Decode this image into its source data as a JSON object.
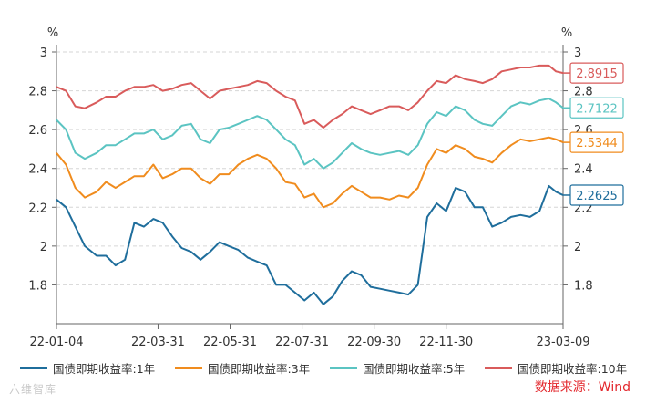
{
  "chart_data": {
    "type": "line",
    "y_unit_left": "%",
    "y_unit_right": "%",
    "ylim": [
      1.6,
      3.0
    ],
    "y_ticks": [
      "3",
      "2.8",
      "2.6",
      "2.4",
      "2.2",
      "2",
      "1.8"
    ],
    "y_tick_values": [
      3.0,
      2.8,
      2.6,
      2.4,
      2.2,
      2.0,
      1.8
    ],
    "x_ticks": [
      "22-01-04",
      "22-03-31",
      "22-05-31",
      "22-07-31",
      "22-09-30",
      "22-11-30",
      "23-03-09"
    ],
    "x_tick_dates": [
      "2022-01-04",
      "2022-03-31",
      "2022-05-31",
      "2022-07-31",
      "2022-09-30",
      "2022-11-30",
      "2023-03-09"
    ],
    "x_range": [
      "2022-01-04",
      "2023-03-09"
    ],
    "grid": "horizontal dashed",
    "legend_position": "bottom",
    "series": [
      {
        "name": "国债即期收益率:1年",
        "color": "#1f6e9c",
        "last_label": "2.2625",
        "points": [
          [
            "2022-01-04",
            2.24
          ],
          [
            "2022-01-12",
            2.2
          ],
          [
            "2022-01-20",
            2.1
          ],
          [
            "2022-01-28",
            2.0
          ],
          [
            "2022-02-07",
            1.95
          ],
          [
            "2022-02-15",
            1.95
          ],
          [
            "2022-02-23",
            1.9
          ],
          [
            "2022-03-03",
            1.93
          ],
          [
            "2022-03-11",
            2.12
          ],
          [
            "2022-03-19",
            2.1
          ],
          [
            "2022-03-27",
            2.14
          ],
          [
            "2022-04-04",
            2.12
          ],
          [
            "2022-04-12",
            2.05
          ],
          [
            "2022-04-20",
            1.99
          ],
          [
            "2022-04-28",
            1.97
          ],
          [
            "2022-05-06",
            1.93
          ],
          [
            "2022-05-14",
            1.97
          ],
          [
            "2022-05-22",
            2.02
          ],
          [
            "2022-05-30",
            2.0
          ],
          [
            "2022-06-07",
            1.98
          ],
          [
            "2022-06-15",
            1.94
          ],
          [
            "2022-06-23",
            1.92
          ],
          [
            "2022-07-01",
            1.9
          ],
          [
            "2022-07-09",
            1.8
          ],
          [
            "2022-07-17",
            1.8
          ],
          [
            "2022-07-25",
            1.76
          ],
          [
            "2022-08-02",
            1.72
          ],
          [
            "2022-08-10",
            1.76
          ],
          [
            "2022-08-18",
            1.7
          ],
          [
            "2022-08-26",
            1.74
          ],
          [
            "2022-09-03",
            1.82
          ],
          [
            "2022-09-11",
            1.87
          ],
          [
            "2022-09-19",
            1.85
          ],
          [
            "2022-09-27",
            1.79
          ],
          [
            "2022-10-05",
            1.78
          ],
          [
            "2022-10-13",
            1.77
          ],
          [
            "2022-10-21",
            1.76
          ],
          [
            "2022-10-29",
            1.75
          ],
          [
            "2022-11-06",
            1.8
          ],
          [
            "2022-11-14",
            2.15
          ],
          [
            "2022-11-22",
            2.22
          ],
          [
            "2022-11-30",
            2.18
          ],
          [
            "2022-12-08",
            2.3
          ],
          [
            "2022-12-16",
            2.28
          ],
          [
            "2022-12-24",
            2.2
          ],
          [
            "2022-12-31",
            2.2
          ],
          [
            "2023-01-08",
            2.1
          ],
          [
            "2023-01-16",
            2.12
          ],
          [
            "2023-01-24",
            2.15
          ],
          [
            "2023-02-01",
            2.16
          ],
          [
            "2023-02-09",
            2.15
          ],
          [
            "2023-02-17",
            2.18
          ],
          [
            "2023-02-25",
            2.31
          ],
          [
            "2023-03-03",
            2.28
          ],
          [
            "2023-03-09",
            2.2625
          ]
        ]
      },
      {
        "name": "国债即期收益率:3年",
        "color": "#f08c1e",
        "last_label": "2.5344",
        "points": [
          [
            "2022-01-04",
            2.48
          ],
          [
            "2022-01-12",
            2.42
          ],
          [
            "2022-01-20",
            2.3
          ],
          [
            "2022-01-28",
            2.25
          ],
          [
            "2022-02-07",
            2.28
          ],
          [
            "2022-02-15",
            2.33
          ],
          [
            "2022-02-23",
            2.3
          ],
          [
            "2022-03-03",
            2.33
          ],
          [
            "2022-03-11",
            2.36
          ],
          [
            "2022-03-19",
            2.36
          ],
          [
            "2022-03-27",
            2.42
          ],
          [
            "2022-04-04",
            2.35
          ],
          [
            "2022-04-12",
            2.37
          ],
          [
            "2022-04-20",
            2.4
          ],
          [
            "2022-04-28",
            2.4
          ],
          [
            "2022-05-06",
            2.35
          ],
          [
            "2022-05-14",
            2.32
          ],
          [
            "2022-05-22",
            2.37
          ],
          [
            "2022-05-30",
            2.37
          ],
          [
            "2022-06-07",
            2.42
          ],
          [
            "2022-06-15",
            2.45
          ],
          [
            "2022-06-23",
            2.47
          ],
          [
            "2022-07-01",
            2.45
          ],
          [
            "2022-07-09",
            2.4
          ],
          [
            "2022-07-17",
            2.33
          ],
          [
            "2022-07-25",
            2.32
          ],
          [
            "2022-08-02",
            2.25
          ],
          [
            "2022-08-10",
            2.27
          ],
          [
            "2022-08-18",
            2.2
          ],
          [
            "2022-08-26",
            2.22
          ],
          [
            "2022-09-03",
            2.27
          ],
          [
            "2022-09-11",
            2.31
          ],
          [
            "2022-09-19",
            2.28
          ],
          [
            "2022-09-27",
            2.25
          ],
          [
            "2022-10-05",
            2.25
          ],
          [
            "2022-10-13",
            2.24
          ],
          [
            "2022-10-21",
            2.26
          ],
          [
            "2022-10-29",
            2.25
          ],
          [
            "2022-11-06",
            2.3
          ],
          [
            "2022-11-14",
            2.42
          ],
          [
            "2022-11-22",
            2.5
          ],
          [
            "2022-11-30",
            2.48
          ],
          [
            "2022-12-08",
            2.52
          ],
          [
            "2022-12-16",
            2.5
          ],
          [
            "2022-12-24",
            2.46
          ],
          [
            "2022-12-31",
            2.45
          ],
          [
            "2023-01-08",
            2.43
          ],
          [
            "2023-01-16",
            2.48
          ],
          [
            "2023-01-24",
            2.52
          ],
          [
            "2023-02-01",
            2.55
          ],
          [
            "2023-02-09",
            2.54
          ],
          [
            "2023-02-17",
            2.55
          ],
          [
            "2023-02-25",
            2.56
          ],
          [
            "2023-03-03",
            2.55
          ],
          [
            "2023-03-09",
            2.5344
          ]
        ]
      },
      {
        "name": "国债即期收益率:5年",
        "color": "#5bc4c2",
        "last_label": "2.7122",
        "points": [
          [
            "2022-01-04",
            2.65
          ],
          [
            "2022-01-12",
            2.6
          ],
          [
            "2022-01-20",
            2.48
          ],
          [
            "2022-01-28",
            2.45
          ],
          [
            "2022-02-07",
            2.48
          ],
          [
            "2022-02-15",
            2.52
          ],
          [
            "2022-02-23",
            2.52
          ],
          [
            "2022-03-03",
            2.55
          ],
          [
            "2022-03-11",
            2.58
          ],
          [
            "2022-03-19",
            2.58
          ],
          [
            "2022-03-27",
            2.6
          ],
          [
            "2022-04-04",
            2.55
          ],
          [
            "2022-04-12",
            2.57
          ],
          [
            "2022-04-20",
            2.62
          ],
          [
            "2022-04-28",
            2.63
          ],
          [
            "2022-05-06",
            2.55
          ],
          [
            "2022-05-14",
            2.53
          ],
          [
            "2022-05-22",
            2.6
          ],
          [
            "2022-05-30",
            2.61
          ],
          [
            "2022-06-07",
            2.63
          ],
          [
            "2022-06-15",
            2.65
          ],
          [
            "2022-06-23",
            2.67
          ],
          [
            "2022-07-01",
            2.65
          ],
          [
            "2022-07-09",
            2.6
          ],
          [
            "2022-07-17",
            2.55
          ],
          [
            "2022-07-25",
            2.52
          ],
          [
            "2022-08-02",
            2.42
          ],
          [
            "2022-08-10",
            2.45
          ],
          [
            "2022-08-18",
            2.4
          ],
          [
            "2022-08-26",
            2.43
          ],
          [
            "2022-09-03",
            2.48
          ],
          [
            "2022-09-11",
            2.53
          ],
          [
            "2022-09-19",
            2.5
          ],
          [
            "2022-09-27",
            2.48
          ],
          [
            "2022-10-05",
            2.47
          ],
          [
            "2022-10-13",
            2.48
          ],
          [
            "2022-10-21",
            2.49
          ],
          [
            "2022-10-29",
            2.47
          ],
          [
            "2022-11-06",
            2.52
          ],
          [
            "2022-11-14",
            2.63
          ],
          [
            "2022-11-22",
            2.69
          ],
          [
            "2022-11-30",
            2.67
          ],
          [
            "2022-12-08",
            2.72
          ],
          [
            "2022-12-16",
            2.7
          ],
          [
            "2022-12-24",
            2.65
          ],
          [
            "2022-12-31",
            2.63
          ],
          [
            "2023-01-08",
            2.62
          ],
          [
            "2023-01-16",
            2.67
          ],
          [
            "2023-01-24",
            2.72
          ],
          [
            "2023-02-01",
            2.74
          ],
          [
            "2023-02-09",
            2.73
          ],
          [
            "2023-02-17",
            2.75
          ],
          [
            "2023-02-25",
            2.76
          ],
          [
            "2023-03-03",
            2.74
          ],
          [
            "2023-03-09",
            2.7122
          ]
        ]
      },
      {
        "name": "国债即期收益率:10年",
        "color": "#d95b5b",
        "last_label": "2.8915",
        "points": [
          [
            "2022-01-04",
            2.82
          ],
          [
            "2022-01-12",
            2.8
          ],
          [
            "2022-01-20",
            2.72
          ],
          [
            "2022-01-28",
            2.71
          ],
          [
            "2022-02-07",
            2.74
          ],
          [
            "2022-02-15",
            2.77
          ],
          [
            "2022-02-23",
            2.77
          ],
          [
            "2022-03-03",
            2.8
          ],
          [
            "2022-03-11",
            2.82
          ],
          [
            "2022-03-19",
            2.82
          ],
          [
            "2022-03-27",
            2.83
          ],
          [
            "2022-04-04",
            2.8
          ],
          [
            "2022-04-12",
            2.81
          ],
          [
            "2022-04-20",
            2.83
          ],
          [
            "2022-04-28",
            2.84
          ],
          [
            "2022-05-06",
            2.8
          ],
          [
            "2022-05-14",
            2.76
          ],
          [
            "2022-05-22",
            2.8
          ],
          [
            "2022-05-30",
            2.81
          ],
          [
            "2022-06-07",
            2.82
          ],
          [
            "2022-06-15",
            2.83
          ],
          [
            "2022-06-23",
            2.85
          ],
          [
            "2022-07-01",
            2.84
          ],
          [
            "2022-07-09",
            2.8
          ],
          [
            "2022-07-17",
            2.77
          ],
          [
            "2022-07-25",
            2.75
          ],
          [
            "2022-08-02",
            2.63
          ],
          [
            "2022-08-10",
            2.65
          ],
          [
            "2022-08-18",
            2.61
          ],
          [
            "2022-08-26",
            2.65
          ],
          [
            "2022-09-03",
            2.68
          ],
          [
            "2022-09-11",
            2.72
          ],
          [
            "2022-09-19",
            2.7
          ],
          [
            "2022-09-27",
            2.68
          ],
          [
            "2022-10-05",
            2.7
          ],
          [
            "2022-10-13",
            2.72
          ],
          [
            "2022-10-21",
            2.72
          ],
          [
            "2022-10-29",
            2.7
          ],
          [
            "2022-11-06",
            2.74
          ],
          [
            "2022-11-14",
            2.8
          ],
          [
            "2022-11-22",
            2.85
          ],
          [
            "2022-11-30",
            2.84
          ],
          [
            "2022-12-08",
            2.88
          ],
          [
            "2022-12-16",
            2.86
          ],
          [
            "2022-12-24",
            2.85
          ],
          [
            "2022-12-31",
            2.84
          ],
          [
            "2023-01-08",
            2.86
          ],
          [
            "2023-01-16",
            2.9
          ],
          [
            "2023-01-24",
            2.91
          ],
          [
            "2023-02-01",
            2.92
          ],
          [
            "2023-02-09",
            2.92
          ],
          [
            "2023-02-17",
            2.93
          ],
          [
            "2023-02-25",
            2.93
          ],
          [
            "2023-03-03",
            2.9
          ],
          [
            "2023-03-09",
            2.8915
          ]
        ]
      }
    ]
  },
  "source": "数据来源：Wind",
  "watermark": "六维智库"
}
